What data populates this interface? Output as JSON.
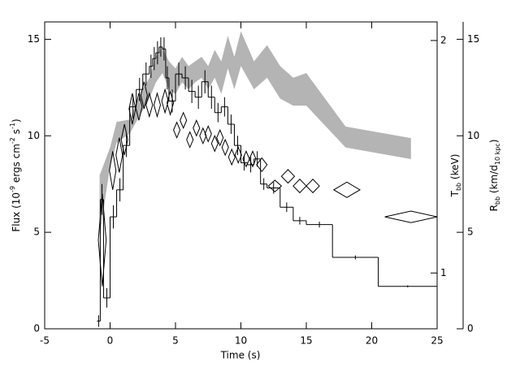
{
  "chart_data": {
    "type": "composite",
    "xlabel": "Time (s)",
    "ylabel_parts": [
      {
        "text": "Flux (10"
      },
      {
        "text": "-9",
        "shift": "super"
      },
      {
        "text": " ergs cm"
      },
      {
        "text": "-2",
        "shift": "super"
      },
      {
        "text": " s"
      },
      {
        "text": "-1",
        "shift": "super"
      },
      {
        "text": ")"
      }
    ],
    "y2label_parts": [
      {
        "text": "T"
      },
      {
        "text": "bb",
        "shift": "sub"
      },
      {
        "text": " (keV)"
      }
    ],
    "y3label_parts": [
      {
        "text": "R"
      },
      {
        "text": "bb",
        "shift": "sub"
      },
      {
        "text": " (km/d"
      },
      {
        "text": "10 kpc",
        "shift": "sub"
      },
      {
        "text": ")"
      }
    ],
    "xlim": [
      -5,
      25
    ],
    "xticks": [
      -5,
      0,
      5,
      10,
      15,
      20,
      25
    ],
    "ylim": [
      0,
      15.9
    ],
    "yticks": [
      0,
      5,
      10,
      15
    ],
    "y2lim": [
      0.76,
      2.08
    ],
    "y2ticks": [
      1,
      2
    ],
    "y3lim": [
      0,
      15.9
    ],
    "y3ticks": [
      0,
      5,
      10,
      15
    ],
    "series": [
      {
        "type": "band",
        "axis": "y2",
        "color": "#b4b4b4",
        "x": [
          -0.8,
          0,
          0.5,
          1.5,
          2,
          2.5,
          3,
          3.5,
          4,
          4.5,
          5,
          5.5,
          6,
          6.5,
          7,
          7.5,
          8,
          8.5,
          9,
          9.5,
          10,
          11,
          12,
          13,
          14,
          15,
          18,
          23
        ],
        "upper": [
          1.42,
          1.54,
          1.65,
          1.66,
          1.73,
          1.79,
          1.84,
          1.93,
          1.97,
          1.91,
          1.88,
          1.93,
          1.89,
          1.91,
          1.93,
          1.89,
          1.96,
          1.91,
          2.02,
          1.93,
          2.04,
          1.91,
          1.98,
          1.89,
          1.84,
          1.86,
          1.63,
          1.58
        ],
        "lower": [
          1.16,
          1.46,
          1.56,
          1.6,
          1.65,
          1.7,
          1.75,
          1.82,
          1.86,
          1.79,
          1.77,
          1.82,
          1.79,
          1.82,
          1.84,
          1.79,
          1.84,
          1.77,
          1.88,
          1.79,
          1.89,
          1.79,
          1.84,
          1.75,
          1.72,
          1.72,
          1.54,
          1.49
        ]
      },
      {
        "type": "step",
        "axis": "y",
        "color": "#000000",
        "bins": [
          -1,
          -0.75,
          -0.5,
          0,
          0.5,
          1,
          1.5,
          2,
          2.5,
          3,
          3.25,
          3.5,
          3.75,
          4,
          4.25,
          4.5,
          5,
          5.5,
          6,
          6.5,
          7,
          7.5,
          8,
          8.5,
          9,
          9.5,
          10,
          10.5,
          11,
          11.5,
          12,
          13,
          14,
          15,
          17,
          20.5,
          25
        ],
        "values": [
          0.4,
          6.7,
          1.6,
          5.8,
          7.2,
          9.5,
          11.5,
          12.4,
          13.2,
          13.6,
          14.0,
          14.3,
          14.6,
          14.5,
          13.0,
          11.8,
          13.2,
          13.0,
          12.3,
          12.0,
          12.8,
          12.0,
          11.2,
          11.5,
          10.6,
          9.5,
          8.6,
          8.5,
          8.8,
          7.5,
          7.3,
          6.3,
          5.6,
          5.4,
          3.7,
          2.2
        ],
        "errors": [
          0.3,
          0.8,
          0.5,
          0.6,
          0.6,
          0.6,
          0.6,
          0.6,
          0.6,
          0.6,
          0.6,
          0.6,
          0.5,
          0.6,
          0.6,
          0.6,
          0.6,
          0.6,
          0.6,
          0.6,
          0.6,
          0.6,
          0.5,
          0.5,
          0.5,
          0.5,
          0.4,
          0.4,
          0.4,
          0.3,
          0.3,
          0.25,
          0.2,
          0.15,
          0.1,
          0.05
        ]
      },
      {
        "type": "diamond",
        "axis": "y3",
        "color": "#000000",
        "x": [
          -0.6,
          0.2,
          0.7,
          1.1,
          1.7,
          2.2,
          2.6,
          3.0,
          3.6,
          4.2,
          4.6,
          5.1,
          5.6,
          6.1,
          6.6,
          7.1,
          7.5,
          8.0,
          8.4,
          8.8,
          9.3,
          9.8,
          10.4,
          10.9,
          11.6,
          12.6,
          13.6,
          14.5,
          15.5,
          18.1,
          23.0
        ],
        "x_err": [
          0.3,
          0.25,
          0.25,
          0.25,
          0.25,
          0.25,
          0.25,
          0.25,
          0.25,
          0.25,
          0.25,
          0.25,
          0.25,
          0.25,
          0.25,
          0.25,
          0.25,
          0.25,
          0.25,
          0.25,
          0.25,
          0.25,
          0.25,
          0.25,
          0.4,
          0.5,
          0.5,
          0.5,
          0.5,
          1.0,
          2.0
        ],
        "values": [
          4.6,
          8.2,
          9.0,
          9.8,
          11.4,
          11.5,
          12.1,
          11.6,
          11.6,
          11.8,
          11.7,
          10.3,
          10.8,
          9.8,
          10.4,
          10.0,
          10.1,
          9.6,
          9.9,
          9.4,
          8.9,
          9.0,
          8.8,
          8.8,
          8.5,
          7.4,
          7.9,
          7.4,
          7.4,
          7.2,
          5.8
        ],
        "errors": [
          2.4,
          1.0,
          0.9,
          0.8,
          0.8,
          0.7,
          0.7,
          0.6,
          0.6,
          0.6,
          0.6,
          0.4,
          0.4,
          0.4,
          0.4,
          0.4,
          0.4,
          0.4,
          0.4,
          0.4,
          0.4,
          0.4,
          0.4,
          0.4,
          0.35,
          0.3,
          0.35,
          0.35,
          0.35,
          0.4,
          0.3
        ]
      }
    ]
  }
}
